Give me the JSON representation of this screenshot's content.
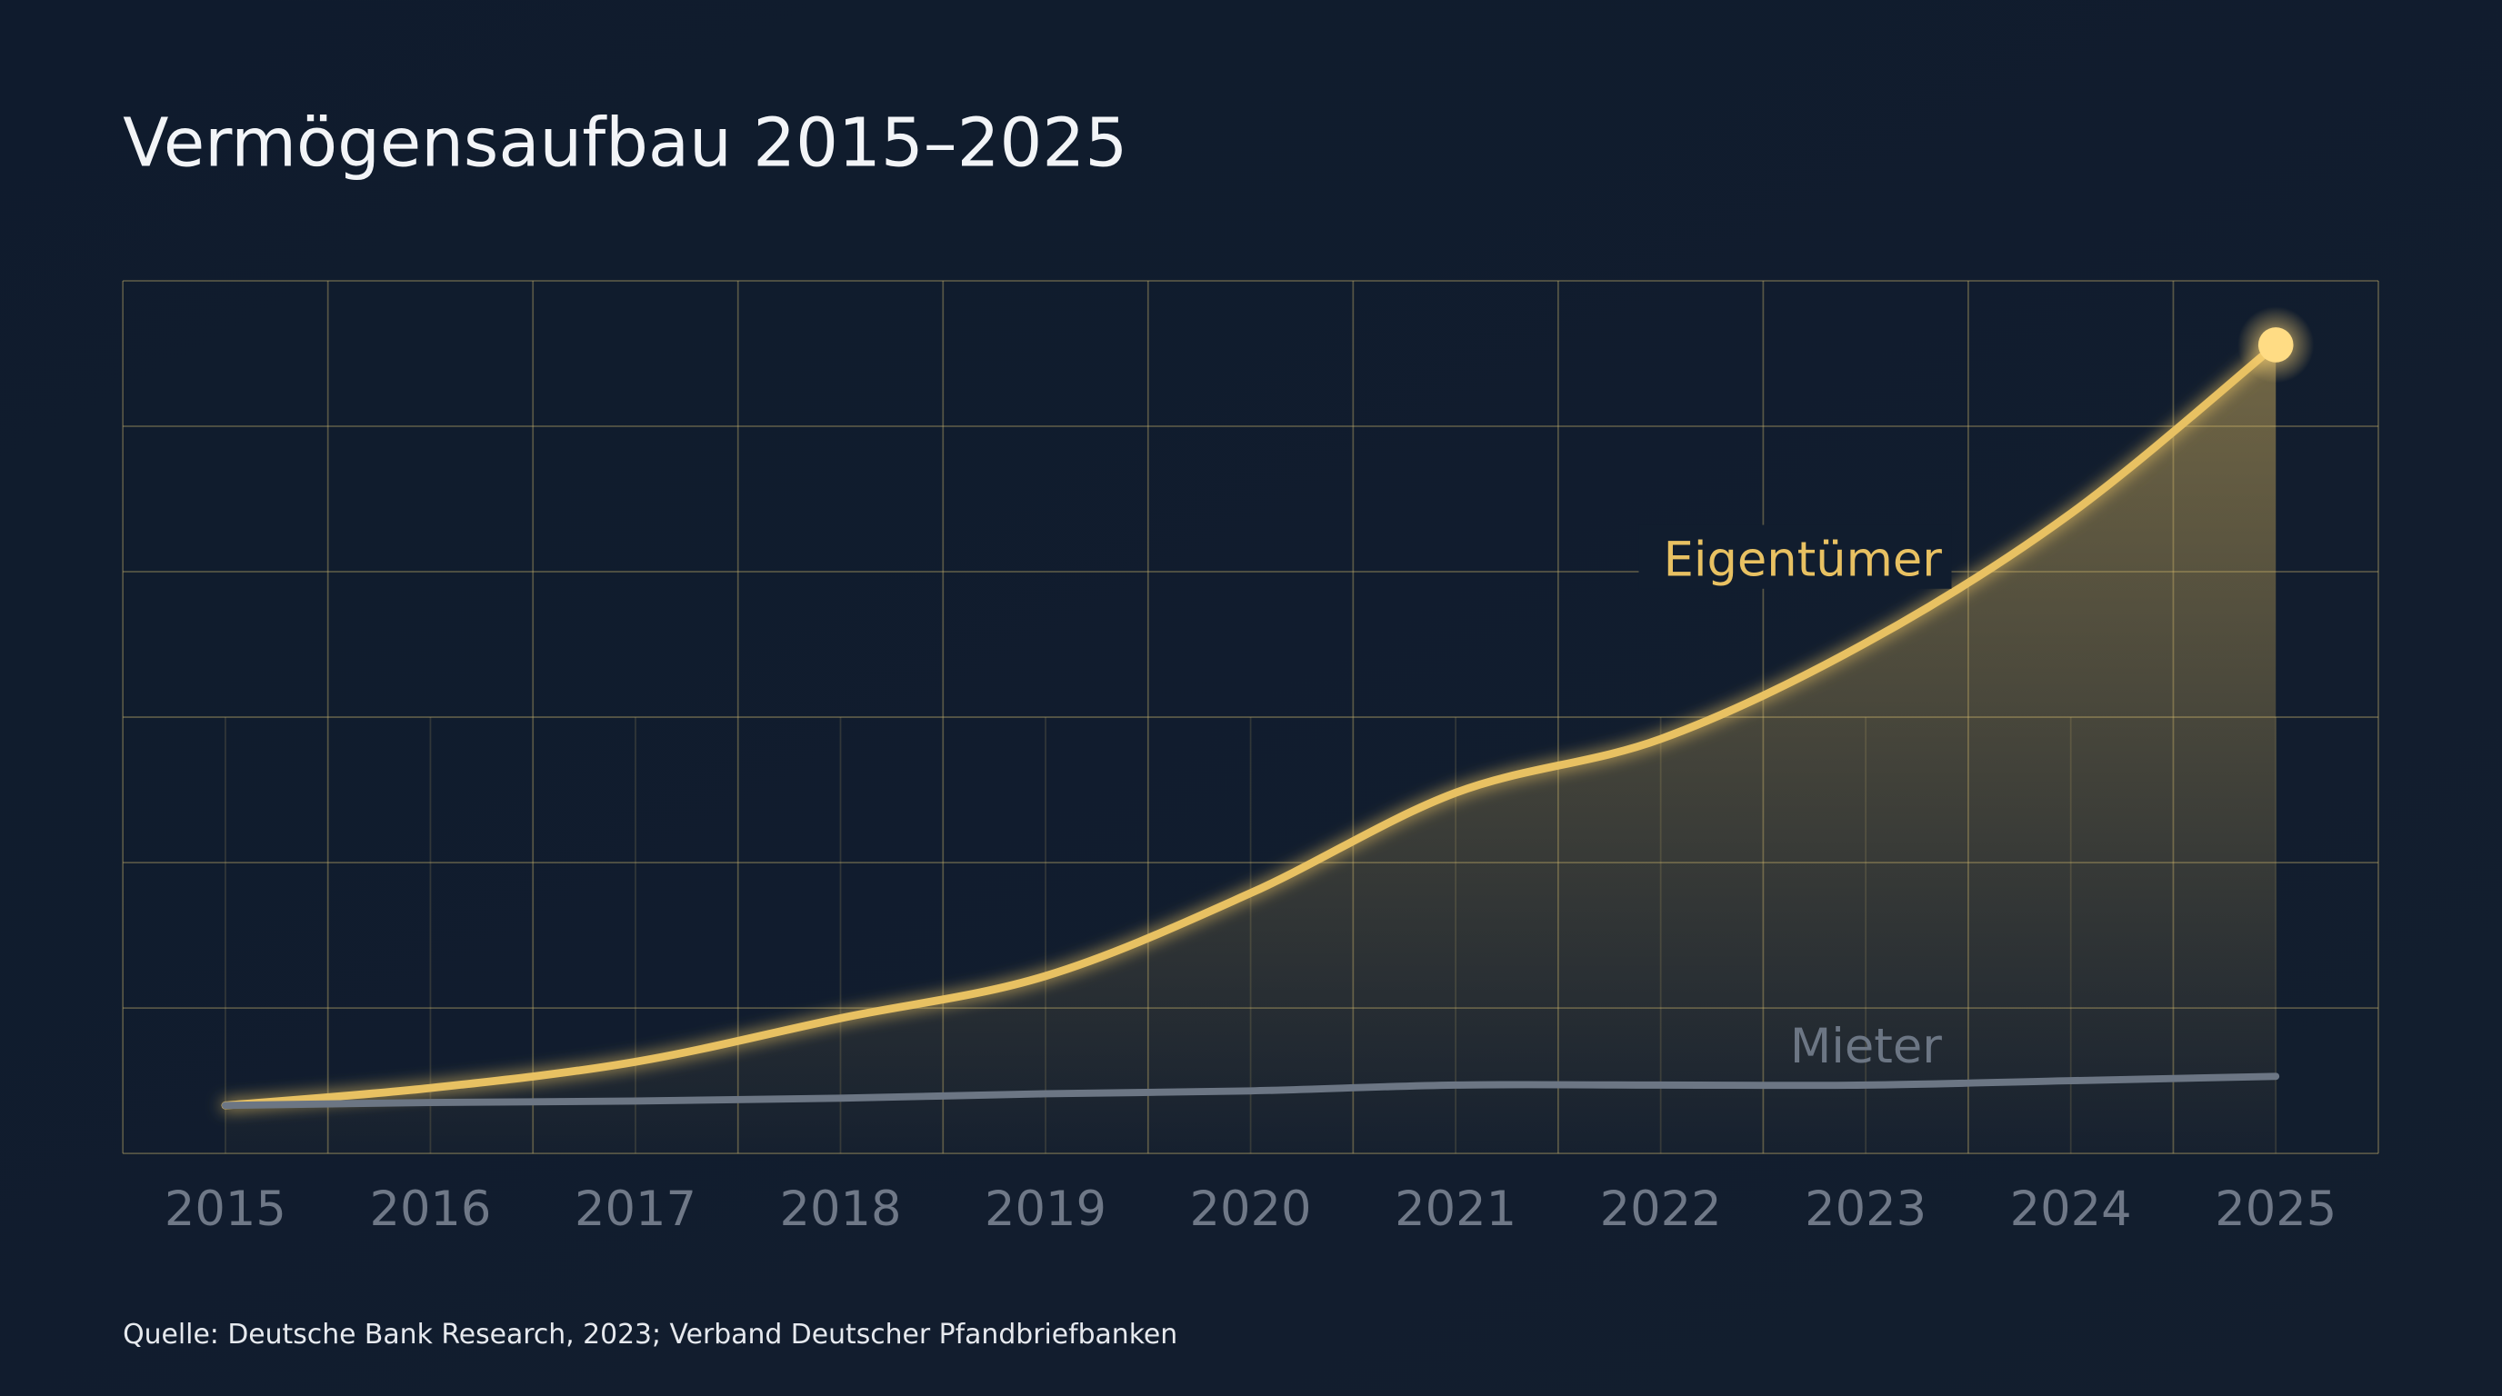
{
  "chart_data": {
    "type": "line",
    "title": "Vermögensaufbau 2015–2025",
    "categories": [
      "2015",
      "2016",
      "2017",
      "2018",
      "2019",
      "2020",
      "2021",
      "2022",
      "2023",
      "2024",
      "2025"
    ],
    "series": [
      {
        "name": "Eigentümer",
        "color": "#e8c162",
        "values": [
          0.33,
          0.45,
          0.63,
          0.93,
          1.22,
          1.79,
          2.48,
          2.85,
          3.51,
          4.4,
          5.56
        ]
      },
      {
        "name": "Mieter",
        "color": "#6c7684",
        "values": [
          0.33,
          0.35,
          0.36,
          0.38,
          0.41,
          0.43,
          0.47,
          0.47,
          0.47,
          0.5,
          0.53
        ]
      }
    ],
    "ylim": [
      0,
      6
    ],
    "yticks": [
      0,
      1,
      2,
      3,
      4,
      5,
      6
    ],
    "grid": true,
    "source": "Quelle: Deutsche Bank Research, 2023; Verband Deutscher Pfandbriefbanken"
  }
}
